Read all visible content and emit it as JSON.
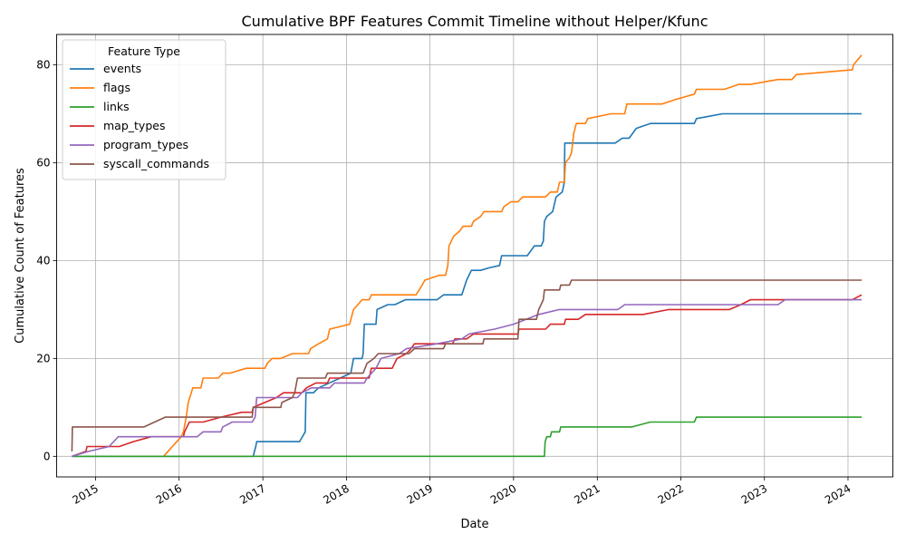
{
  "chart_data": {
    "type": "line",
    "title": "Cumulative BPF Features Commit Timeline without Helper/Kfunc",
    "xlabel": "Date",
    "ylabel": "Cumulative Count of Features",
    "xlim": [
      "2014-07-15",
      "2024-07-15"
    ],
    "ylim": [
      -4.2,
      86.2
    ],
    "x_ticks": [
      "2015-01-01",
      "2016-01-01",
      "2017-01-01",
      "2018-01-01",
      "2019-01-01",
      "2020-01-01",
      "2021-01-01",
      "2022-01-01",
      "2023-01-01",
      "2024-01-01"
    ],
    "x_tick_labels": [
      "2015",
      "2016",
      "2017",
      "2018",
      "2019",
      "2020",
      "2021",
      "2022",
      "2023",
      "2024"
    ],
    "y_ticks": [
      0,
      20,
      40,
      60,
      80
    ],
    "y_tick_labels": [
      "0",
      "20",
      "40",
      "60",
      "80"
    ],
    "grid": true,
    "legend": {
      "title": "Feature Type",
      "position": "top-left"
    },
    "series": [
      {
        "name": "events",
        "color": "#1f77b4",
        "points": [
          [
            "2014-09-20",
            0
          ],
          [
            "2016-11-20",
            0
          ],
          [
            "2016-11-25",
            1
          ],
          [
            "2016-12-01",
            2
          ],
          [
            "2016-12-05",
            3
          ],
          [
            "2017-06-10",
            3
          ],
          [
            "2017-07-05",
            5
          ],
          [
            "2017-07-08",
            13
          ],
          [
            "2017-08-10",
            13
          ],
          [
            "2017-09-01",
            14
          ],
          [
            "2018-01-20",
            17
          ],
          [
            "2018-02-01",
            20
          ],
          [
            "2018-03-10",
            20
          ],
          [
            "2018-03-15",
            21
          ],
          [
            "2018-03-20",
            27
          ],
          [
            "2018-05-10",
            27
          ],
          [
            "2018-05-15",
            30
          ],
          [
            "2018-07-01",
            31
          ],
          [
            "2018-08-01",
            31
          ],
          [
            "2018-09-15",
            32
          ],
          [
            "2019-02-01",
            32
          ],
          [
            "2019-03-01",
            33
          ],
          [
            "2019-05-20",
            33
          ],
          [
            "2019-06-10",
            36
          ],
          [
            "2019-07-01",
            38
          ],
          [
            "2019-08-10",
            38
          ],
          [
            "2019-09-15",
            38.5
          ],
          [
            "2019-11-01",
            39
          ],
          [
            "2019-11-10",
            41
          ],
          [
            "2020-03-01",
            41
          ],
          [
            "2020-04-01",
            43
          ],
          [
            "2020-05-01",
            43
          ],
          [
            "2020-05-10",
            44
          ],
          [
            "2020-05-15",
            48
          ],
          [
            "2020-05-25",
            49
          ],
          [
            "2020-06-20",
            50
          ],
          [
            "2020-07-05",
            53
          ],
          [
            "2020-08-01",
            54
          ],
          [
            "2020-08-10",
            56
          ],
          [
            "2020-08-12",
            64
          ],
          [
            "2021-03-20",
            64
          ],
          [
            "2021-04-20",
            65
          ],
          [
            "2021-05-20",
            65
          ],
          [
            "2021-06-20",
            67
          ],
          [
            "2021-08-20",
            68
          ],
          [
            "2022-03-01",
            68
          ],
          [
            "2022-03-10",
            69
          ],
          [
            "2022-07-01",
            70
          ],
          [
            "2024-03-01",
            70
          ]
        ]
      },
      {
        "name": "flags",
        "color": "#ff7f0e",
        "points": [
          [
            "2015-10-25",
            0
          ],
          [
            "2016-01-10",
            4
          ],
          [
            "2016-01-20",
            5
          ],
          [
            "2016-02-01",
            8
          ],
          [
            "2016-02-10",
            11
          ],
          [
            "2016-03-01",
            14
          ],
          [
            "2016-04-05",
            14
          ],
          [
            "2016-04-15",
            16
          ],
          [
            "2016-06-20",
            16
          ],
          [
            "2016-07-10",
            17
          ],
          [
            "2016-08-10",
            17
          ],
          [
            "2016-10-20",
            18
          ],
          [
            "2017-01-10",
            18
          ],
          [
            "2017-01-20",
            19
          ],
          [
            "2017-02-10",
            20
          ],
          [
            "2017-03-20",
            20
          ],
          [
            "2017-05-10",
            21
          ],
          [
            "2017-07-20",
            21
          ],
          [
            "2017-07-28",
            22
          ],
          [
            "2017-09-01",
            23
          ],
          [
            "2017-10-10",
            24
          ],
          [
            "2017-10-20",
            26
          ],
          [
            "2018-01-15",
            27
          ],
          [
            "2018-02-01",
            30
          ],
          [
            "2018-02-20",
            31
          ],
          [
            "2018-03-10",
            32
          ],
          [
            "2018-04-10",
            32
          ],
          [
            "2018-04-20",
            33
          ],
          [
            "2018-11-01",
            33
          ],
          [
            "2018-11-15",
            34
          ],
          [
            "2018-12-10",
            36
          ],
          [
            "2019-02-10",
            37
          ],
          [
            "2019-03-10",
            37
          ],
          [
            "2019-03-20",
            39
          ],
          [
            "2019-03-25",
            43
          ],
          [
            "2019-04-15",
            45
          ],
          [
            "2019-05-10",
            46
          ],
          [
            "2019-05-25",
            47
          ],
          [
            "2019-07-01",
            47
          ],
          [
            "2019-07-10",
            48
          ],
          [
            "2019-08-10",
            49
          ],
          [
            "2019-08-25",
            50
          ],
          [
            "2019-11-10",
            50
          ],
          [
            "2019-11-20",
            51
          ],
          [
            "2019-12-20",
            52
          ],
          [
            "2020-01-20",
            52
          ],
          [
            "2020-02-10",
            53
          ],
          [
            "2020-05-20",
            53
          ],
          [
            "2020-06-10",
            54
          ],
          [
            "2020-07-10",
            54
          ],
          [
            "2020-07-20",
            56
          ],
          [
            "2020-08-10",
            56
          ],
          [
            "2020-08-15",
            60
          ],
          [
            "2020-09-01",
            61
          ],
          [
            "2020-09-10",
            62
          ],
          [
            "2020-09-20",
            66
          ],
          [
            "2020-10-01",
            68
          ],
          [
            "2020-11-10",
            68
          ],
          [
            "2020-11-20",
            69
          ],
          [
            "2021-03-01",
            70
          ],
          [
            "2021-05-01",
            70
          ],
          [
            "2021-05-10",
            72
          ],
          [
            "2021-10-10",
            72
          ],
          [
            "2021-12-15",
            73
          ],
          [
            "2022-03-01",
            74
          ],
          [
            "2022-03-10",
            75
          ],
          [
            "2022-07-10",
            75
          ],
          [
            "2022-09-10",
            76
          ],
          [
            "2022-11-01",
            76
          ],
          [
            "2023-03-01",
            77
          ],
          [
            "2023-05-01",
            77
          ],
          [
            "2023-05-20",
            78
          ],
          [
            "2024-01-20",
            79
          ],
          [
            "2024-01-25",
            80
          ],
          [
            "2024-03-01",
            82
          ]
        ]
      },
      {
        "name": "links",
        "color": "#2ca02c",
        "points": [
          [
            "2014-09-20",
            0
          ],
          [
            "2020-05-15",
            0
          ],
          [
            "2020-05-18",
            3
          ],
          [
            "2020-05-25",
            4
          ],
          [
            "2020-06-10",
            4
          ],
          [
            "2020-06-15",
            5
          ],
          [
            "2020-07-20",
            5
          ],
          [
            "2020-07-25",
            6
          ],
          [
            "2021-06-01",
            6
          ],
          [
            "2021-08-20",
            7
          ],
          [
            "2022-03-01",
            7
          ],
          [
            "2022-03-10",
            8
          ],
          [
            "2024-03-01",
            8
          ]
        ]
      },
      {
        "name": "map_types",
        "color": "#d62728",
        "points": [
          [
            "2014-09-20",
            0
          ],
          [
            "2014-11-20",
            1
          ],
          [
            "2014-11-25",
            2
          ],
          [
            "2015-04-15",
            2
          ],
          [
            "2015-06-15",
            3
          ],
          [
            "2015-09-01",
            4
          ],
          [
            "2016-01-20",
            4
          ],
          [
            "2016-01-25",
            5
          ],
          [
            "2016-02-15",
            7
          ],
          [
            "2016-04-15",
            7
          ],
          [
            "2016-07-01",
            8
          ],
          [
            "2016-10-01",
            9
          ],
          [
            "2016-11-15",
            9
          ],
          [
            "2016-11-20",
            10
          ],
          [
            "2017-01-10",
            11
          ],
          [
            "2017-03-01",
            12
          ],
          [
            "2017-04-01",
            13
          ],
          [
            "2017-06-20",
            13
          ],
          [
            "2017-07-10",
            14
          ],
          [
            "2017-08-20",
            15
          ],
          [
            "2017-10-10",
            15
          ],
          [
            "2017-10-20",
            16
          ],
          [
            "2018-04-10",
            16
          ],
          [
            "2018-04-20",
            18
          ],
          [
            "2018-07-20",
            18
          ],
          [
            "2018-08-10",
            20
          ],
          [
            "2018-09-20",
            21
          ],
          [
            "2018-10-10",
            22
          ],
          [
            "2018-10-25",
            23
          ],
          [
            "2019-04-10",
            23
          ],
          [
            "2019-04-20",
            24
          ],
          [
            "2019-06-10",
            24
          ],
          [
            "2019-07-10",
            25
          ],
          [
            "2020-01-20",
            25
          ],
          [
            "2020-01-25",
            26
          ],
          [
            "2020-05-20",
            26
          ],
          [
            "2020-06-10",
            27
          ],
          [
            "2020-08-10",
            27
          ],
          [
            "2020-08-15",
            28
          ],
          [
            "2020-10-10",
            28
          ],
          [
            "2020-11-10",
            29
          ],
          [
            "2021-07-20",
            29
          ],
          [
            "2021-11-10",
            30
          ],
          [
            "2022-08-01",
            30
          ],
          [
            "2022-09-20",
            31
          ],
          [
            "2022-11-01",
            32
          ],
          [
            "2024-01-20",
            32
          ],
          [
            "2024-03-01",
            33
          ]
        ]
      },
      {
        "name": "program_types",
        "color": "#9467bd",
        "points": [
          [
            "2014-09-20",
            0
          ],
          [
            "2014-12-01",
            1
          ],
          [
            "2015-03-01",
            2
          ],
          [
            "2015-04-10",
            4
          ],
          [
            "2016-03-20",
            4
          ],
          [
            "2016-04-15",
            5
          ],
          [
            "2016-07-01",
            5
          ],
          [
            "2016-07-10",
            6
          ],
          [
            "2016-08-20",
            7
          ],
          [
            "2016-11-15",
            7
          ],
          [
            "2016-11-28",
            8
          ],
          [
            "2016-12-05",
            12
          ],
          [
            "2017-06-01",
            12
          ],
          [
            "2017-06-20",
            13
          ],
          [
            "2017-08-01",
            14
          ],
          [
            "2017-10-20",
            14
          ],
          [
            "2017-11-10",
            15
          ],
          [
            "2018-03-20",
            15
          ],
          [
            "2018-04-01",
            16
          ],
          [
            "2018-05-10",
            18
          ],
          [
            "2018-06-01",
            20
          ],
          [
            "2018-08-20",
            21
          ],
          [
            "2018-09-20",
            22
          ],
          [
            "2019-02-01",
            23
          ],
          [
            "2019-05-20",
            24
          ],
          [
            "2019-06-20",
            25
          ],
          [
            "2019-10-10",
            26
          ],
          [
            "2020-01-01",
            27
          ],
          [
            "2020-04-20",
            29
          ],
          [
            "2020-07-20",
            30
          ],
          [
            "2021-04-01",
            30
          ],
          [
            "2021-05-01",
            31
          ],
          [
            "2023-03-01",
            31
          ],
          [
            "2023-04-01",
            32
          ],
          [
            "2024-03-01",
            32
          ]
        ]
      },
      {
        "name": "syscall_commands",
        "color": "#8c564b",
        "points": [
          [
            "2014-09-20",
            1
          ],
          [
            "2014-09-22",
            6
          ],
          [
            "2015-08-01",
            6
          ],
          [
            "2015-11-01",
            8
          ],
          [
            "2016-11-15",
            8
          ],
          [
            "2016-11-20",
            10
          ],
          [
            "2017-03-20",
            10
          ],
          [
            "2017-03-25",
            11
          ],
          [
            "2017-05-10",
            12
          ],
          [
            "2017-05-20",
            13
          ],
          [
            "2017-06-01",
            16
          ],
          [
            "2017-10-01",
            16
          ],
          [
            "2017-10-10",
            17
          ],
          [
            "2018-03-15",
            17
          ],
          [
            "2018-04-01",
            19
          ],
          [
            "2018-05-01",
            20
          ],
          [
            "2018-05-20",
            21
          ],
          [
            "2018-10-01",
            21
          ],
          [
            "2018-10-25",
            22
          ],
          [
            "2019-03-01",
            22
          ],
          [
            "2019-03-10",
            23
          ],
          [
            "2019-08-20",
            23
          ],
          [
            "2019-08-25",
            24
          ],
          [
            "2020-01-20",
            24
          ],
          [
            "2020-01-25",
            28
          ],
          [
            "2020-04-10",
            28
          ],
          [
            "2020-04-20",
            30
          ],
          [
            "2020-05-10",
            32
          ],
          [
            "2020-05-15",
            34
          ],
          [
            "2020-07-20",
            34
          ],
          [
            "2020-07-25",
            35
          ],
          [
            "2020-09-01",
            35
          ],
          [
            "2020-09-10",
            36
          ],
          [
            "2024-03-01",
            36
          ]
        ]
      }
    ]
  }
}
